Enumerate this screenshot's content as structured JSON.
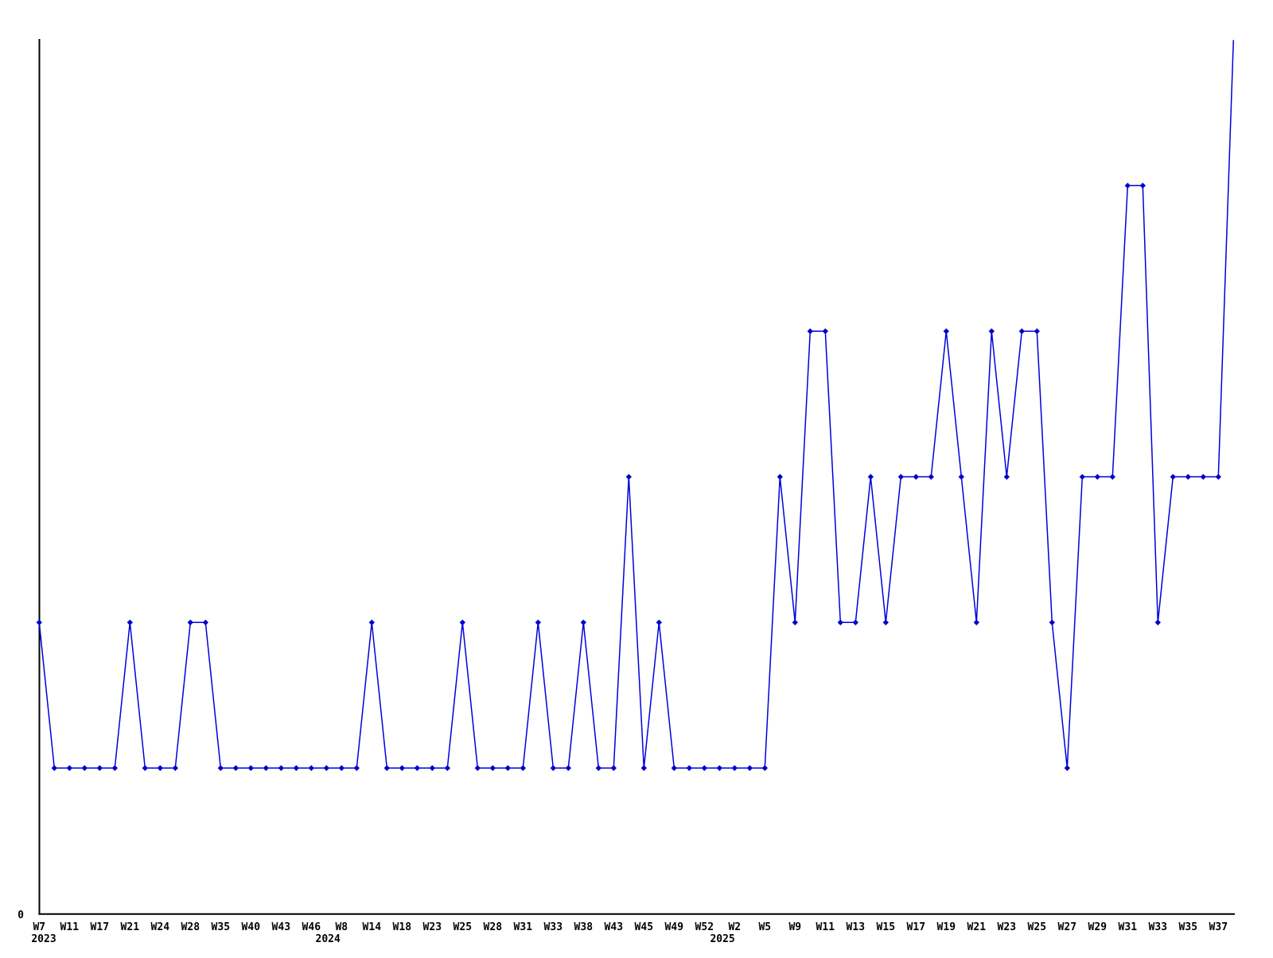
{
  "chart_data": {
    "type": "line",
    "title": "",
    "xlabel": "",
    "ylabel": "",
    "line_color": "#0000dd",
    "marker_color": "#0000cc",
    "axis_color": "#000000",
    "marker": "diamond",
    "grid": false,
    "legend": null,
    "ylim": [
      0,
      6
    ],
    "y_axis_tick_labels": [
      "0"
    ],
    "x_count": 80,
    "tick_step": 2,
    "tick_labels": [
      "W7",
      "W11",
      "W17",
      "W21",
      "W24",
      "W28",
      "W35",
      "W40",
      "W43",
      "W46",
      "W8",
      "W14",
      "W18",
      "W23",
      "W25",
      "W28",
      "W31",
      "W33",
      "W38",
      "W43",
      "W45",
      "W49",
      "W52",
      "W2",
      "W5",
      "W9",
      "W11",
      "W13",
      "W15",
      "W17",
      "W19",
      "W21",
      "W23",
      "W25",
      "W27",
      "W29",
      "W31",
      "W33",
      "W35",
      "W37"
    ],
    "year_labels": [
      {
        "text": "2023",
        "at_index": 0.3
      },
      {
        "text": "2024",
        "at_index": 19.1
      },
      {
        "text": "2025",
        "at_index": 45.2
      }
    ],
    "values": [
      2,
      1,
      1,
      1,
      1,
      1,
      2,
      1,
      1,
      1,
      2,
      2,
      1,
      1,
      1,
      1,
      1,
      1,
      1,
      1,
      1,
      1,
      2,
      1,
      1,
      1,
      1,
      1,
      2,
      1,
      1,
      1,
      1,
      2,
      1,
      1,
      2,
      1,
      1,
      3,
      1,
      2,
      1,
      1,
      1,
      1,
      1,
      1,
      1,
      3,
      2,
      4,
      4,
      2,
      2,
      3,
      2,
      3,
      3,
      3,
      4,
      3,
      2,
      4,
      3,
      4,
      4,
      2,
      1,
      3,
      3,
      3,
      5,
      5,
      2,
      3,
      3,
      3,
      3,
      6
    ],
    "last_point_has_marker": false
  }
}
